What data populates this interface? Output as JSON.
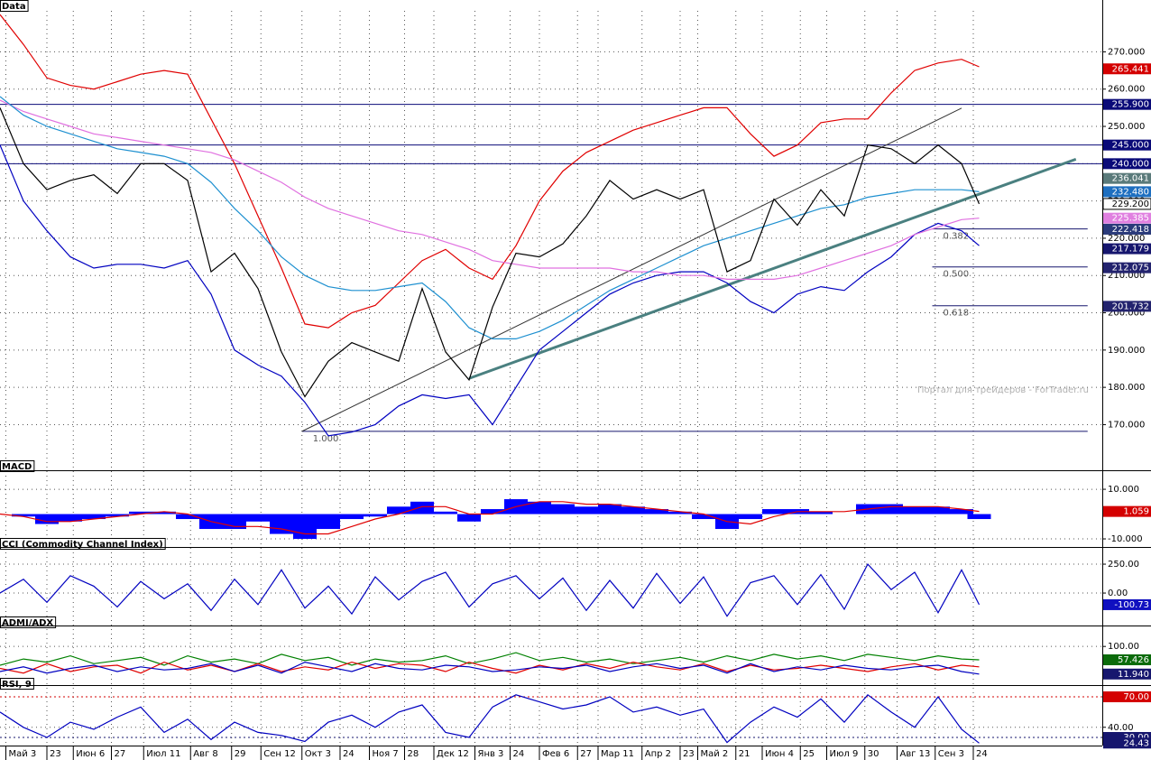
{
  "chart_data": [
    {
      "type": "line",
      "title": "Data",
      "watermark": "Портал для трейдеров - ForTrader.ru",
      "xlim": [
        0,
        376
      ],
      "ylim": [
        158,
        281
      ],
      "yticks": [
        {
          "value": 170,
          "label": "170.000"
        },
        {
          "value": 180,
          "label": "180.000"
        },
        {
          "value": 190,
          "label": "190.000"
        },
        {
          "value": 200,
          "label": "200.000"
        },
        {
          "value": 210,
          "label": "210.000"
        },
        {
          "value": 220,
          "label": "220.000"
        },
        {
          "value": 230,
          "label": "230.000"
        },
        {
          "value": 240,
          "label": "240.000"
        },
        {
          "value": 250,
          "label": "250.000"
        },
        {
          "value": 260,
          "label": "260.000"
        },
        {
          "value": 270,
          "label": "270.000"
        }
      ],
      "x": [
        0,
        8,
        16,
        24,
        32,
        40,
        48,
        56,
        64,
        72,
        80,
        88,
        96,
        104,
        112,
        120,
        128,
        136,
        144,
        152,
        160,
        168,
        176,
        184,
        192,
        200,
        208,
        216,
        224,
        232,
        240,
        248,
        256,
        264,
        272,
        280,
        288,
        296,
        304,
        312,
        320,
        328,
        334
      ],
      "series": [
        {
          "color": "#e00000",
          "values": [
            280,
            272,
            263,
            261,
            260,
            262,
            264,
            265,
            264,
            252,
            240,
            226,
            212,
            197,
            196,
            200,
            202,
            208,
            214,
            217,
            212,
            209,
            218,
            230,
            238,
            243,
            246,
            249,
            251,
            253,
            255,
            255,
            248,
            242,
            245,
            251,
            252,
            252,
            259,
            265,
            267,
            268,
            266
          ]
        },
        {
          "color": "#0000c0",
          "values": [
            245,
            230,
            222,
            215,
            212,
            213,
            213,
            212,
            214,
            205,
            190,
            186,
            183,
            176,
            167,
            168,
            170,
            175,
            178,
            177,
            178,
            170,
            180,
            190,
            195,
            200,
            205,
            208,
            210,
            211,
            211,
            208,
            203,
            200,
            205,
            207,
            206,
            211,
            215,
            221,
            224,
            222,
            218
          ]
        },
        {
          "color": "#e070e0",
          "values": [
            257,
            254,
            252,
            250,
            248,
            247,
            246,
            245,
            244,
            243,
            241,
            238,
            235,
            231,
            228,
            226,
            224,
            222,
            221,
            219,
            217,
            214,
            213,
            212,
            212,
            212,
            212,
            211,
            211,
            210,
            210,
            209,
            209,
            209,
            210,
            212,
            214,
            216,
            218,
            221,
            223,
            225,
            225.385
          ]
        },
        {
          "color": "#1e90d0",
          "values": [
            258,
            253,
            250,
            248,
            246,
            244,
            243,
            242,
            240,
            235,
            228,
            222,
            215,
            210,
            207,
            206,
            206,
            207,
            208,
            203,
            196,
            193,
            193,
            195,
            198,
            202,
            206,
            209,
            212,
            215,
            218,
            220,
            222,
            224,
            226,
            228,
            229,
            231,
            232,
            233,
            233,
            233,
            232.48
          ]
        },
        {
          "color": "#000000",
          "values": [
            255,
            240,
            233,
            235.5,
            237,
            232,
            240,
            240,
            235.5,
            211,
            216,
            206.5,
            189.5,
            177.5,
            187,
            192,
            189.5,
            187,
            206.5,
            189.5,
            182,
            201.5,
            216,
            215,
            218.5,
            226,
            235.5,
            230.5,
            233,
            230.5,
            233,
            211,
            214,
            230.5,
            223.5,
            233,
            226,
            245,
            244,
            240,
            245,
            240,
            229.2
          ]
        }
      ],
      "trendlines": [
        {
          "x": [
            103,
            328
          ],
          "y": [
            168.2,
            254.9
          ],
          "color": "#333333",
          "width": 1
        },
        {
          "x": [
            160,
            367
          ],
          "y": [
            182.4,
            241.2
          ],
          "color": "#4a8080",
          "width": 3
        }
      ],
      "fibonacci": {
        "x_end": 371,
        "levels": [
          {
            "label": "0.382",
            "value": 222.5,
            "x_start": 318
          },
          {
            "label": "0.500",
            "value": 212.3,
            "x_start": 318
          },
          {
            "label": "0.618",
            "value": 201.9,
            "x_start": 318
          },
          {
            "label": "1.000",
            "value": 168.2,
            "x_start": 103
          }
        ]
      },
      "markers": [
        {
          "value": 265.441,
          "color": "#d40000"
        },
        {
          "value": 255.9,
          "label": "255.900",
          "color": "#0a0a78",
          "line": true
        },
        {
          "value": 245,
          "label": "245.000",
          "color": "#0a0a78",
          "line": true
        },
        {
          "value": 240,
          "label": "240.000",
          "color": "#0a0a78",
          "line": true
        },
        {
          "value": 236.041,
          "color": "#5a7a7a"
        },
        {
          "value": 232.48,
          "label": "232.480",
          "color": "#1e6fc0"
        },
        {
          "value": 229.2,
          "label": "229.200",
          "color": "#ffffff",
          "text_color": "#000000"
        },
        {
          "value": 225.385,
          "color": "#e080e0"
        },
        {
          "value": 222.418,
          "color": "#2a3a7a"
        },
        {
          "value": 217.179,
          "color": "#16166e"
        },
        {
          "value": 212.075,
          "color": "#23236e"
        },
        {
          "value": 201.732,
          "color": "#23236e"
        }
      ]
    },
    {
      "type": "line",
      "title": "MACD",
      "xlim": [
        0,
        376
      ],
      "ylim": [
        -12.9,
        17.3
      ],
      "yticks": [
        {
          "value": 10,
          "label": "10.000"
        },
        {
          "value": -10,
          "label": "-10.000"
        }
      ],
      "x": [
        0,
        8,
        16,
        24,
        32,
        40,
        48,
        56,
        64,
        72,
        80,
        88,
        96,
        104,
        112,
        120,
        128,
        136,
        144,
        152,
        160,
        168,
        176,
        184,
        192,
        200,
        208,
        216,
        224,
        232,
        240,
        248,
        256,
        264,
        272,
        280,
        288,
        296,
        304,
        312,
        320,
        328,
        334
      ],
      "series": [
        {
          "type": "bar",
          "color": "#0000ff",
          "values": [
            0,
            -1,
            -4,
            -3,
            -2,
            -1,
            1,
            1,
            -2,
            -6,
            -6,
            -3,
            -8,
            -10,
            -6,
            -2,
            -1,
            3,
            5,
            1,
            -3,
            2,
            6,
            5,
            4,
            3,
            4,
            3,
            2,
            1,
            -2,
            -6,
            -2,
            2,
            2,
            1,
            0,
            4,
            4,
            3,
            3,
            2,
            -2
          ]
        },
        {
          "color": "#e00000",
          "values": [
            0,
            -1,
            -3,
            -3,
            -2,
            -1,
            0,
            1,
            0,
            -3,
            -5,
            -5,
            -6,
            -8,
            -8,
            -5,
            -2,
            0,
            3,
            3,
            0,
            0,
            3,
            5,
            5,
            4,
            4,
            3,
            2,
            1,
            0,
            -3,
            -4,
            -1,
            1,
            1,
            1,
            2,
            3,
            3,
            3,
            2,
            1.059
          ]
        }
      ],
      "markers": [
        {
          "value": 1.059,
          "color": "#d40000"
        }
      ]
    },
    {
      "type": "line",
      "title": "CCI (Commodity Channel Index)",
      "xlim": [
        0,
        376
      ],
      "ylim": [
        -273,
        383
      ],
      "yticks": [
        {
          "value": 250,
          "label": "250.00"
        },
        {
          "value": 0,
          "label": "0.00"
        }
      ],
      "x": [
        0,
        8,
        16,
        24,
        32,
        40,
        48,
        56,
        64,
        72,
        80,
        88,
        96,
        104,
        112,
        120,
        128,
        136,
        144,
        152,
        160,
        168,
        176,
        184,
        192,
        200,
        208,
        216,
        224,
        232,
        240,
        248,
        256,
        264,
        272,
        280,
        288,
        296,
        304,
        312,
        320,
        328,
        334
      ],
      "series": [
        {
          "color": "#0000c0",
          "values": [
            0,
            120,
            -80,
            150,
            60,
            -120,
            100,
            -50,
            80,
            -150,
            120,
            -100,
            200,
            -130,
            60,
            -180,
            140,
            -60,
            100,
            180,
            -120,
            80,
            150,
            -50,
            130,
            -150,
            110,
            -130,
            170,
            -90,
            140,
            -200,
            90,
            150,
            -100,
            160,
            -140,
            250,
            30,
            180,
            -170,
            200,
            -100.73
          ]
        }
      ],
      "markers": [
        {
          "value": -100.73,
          "color": "#1010c0"
        }
      ]
    },
    {
      "type": "line",
      "title": "ADMI/ADX",
      "xlim": [
        0,
        376
      ],
      "ylim": [
        -6,
        161
      ],
      "yticks": [
        {
          "value": 100,
          "label": "100.00"
        }
      ],
      "x": [
        0,
        8,
        16,
        24,
        32,
        40,
        48,
        56,
        64,
        72,
        80,
        88,
        96,
        104,
        112,
        120,
        128,
        136,
        144,
        152,
        160,
        168,
        176,
        184,
        192,
        200,
        208,
        216,
        224,
        232,
        240,
        248,
        256,
        264,
        272,
        280,
        288,
        296,
        304,
        312,
        320,
        328,
        334
      ],
      "series": [
        {
          "color": "#008000",
          "values": [
            40,
            60,
            50,
            70,
            45,
            55,
            65,
            40,
            70,
            50,
            60,
            45,
            75,
            55,
            65,
            40,
            60,
            50,
            55,
            70,
            45,
            60,
            80,
            55,
            65,
            50,
            60,
            45,
            55,
            65,
            50,
            70,
            55,
            75,
            60,
            70,
            55,
            75,
            65,
            55,
            70,
            60,
            57.426
          ]
        },
        {
          "color": "#e00000",
          "values": [
            30,
            15,
            45,
            20,
            35,
            40,
            15,
            50,
            25,
            40,
            20,
            45,
            20,
            35,
            25,
            50,
            30,
            45,
            40,
            20,
            50,
            30,
            15,
            40,
            25,
            45,
            30,
            50,
            35,
            25,
            45,
            20,
            40,
            25,
            30,
            40,
            30,
            20,
            35,
            45,
            25,
            40,
            35
          ]
        },
        {
          "color": "#0000c0",
          "values": [
            20,
            35,
            15,
            30,
            40,
            20,
            35,
            25,
            30,
            45,
            20,
            40,
            15,
            50,
            35,
            20,
            45,
            30,
            25,
            40,
            35,
            20,
            25,
            35,
            30,
            40,
            20,
            35,
            45,
            30,
            40,
            15,
            45,
            20,
            35,
            25,
            40,
            30,
            25,
            35,
            40,
            20,
            11.94
          ]
        }
      ],
      "markers": [
        {
          "value": 57.426,
          "color": "#0b6b0b"
        },
        {
          "value": 11.94,
          "label": "11.940",
          "color": "#16166e"
        }
      ]
    },
    {
      "type": "line",
      "title": "RSI, 9",
      "xlim": [
        0,
        376
      ],
      "ylim": [
        22,
        78
      ],
      "yticks": [
        {
          "value": 40,
          "label": "40.00"
        }
      ],
      "x": [
        0,
        8,
        16,
        24,
        32,
        40,
        48,
        56,
        64,
        72,
        80,
        88,
        96,
        104,
        112,
        120,
        128,
        136,
        144,
        152,
        160,
        168,
        176,
        184,
        192,
        200,
        208,
        216,
        224,
        232,
        240,
        248,
        256,
        264,
        272,
        280,
        288,
        296,
        304,
        312,
        320,
        328,
        334
      ],
      "series": [
        {
          "color": "#0000c0",
          "values": [
            55,
            40,
            30,
            45,
            38,
            50,
            60,
            35,
            48,
            28,
            45,
            35,
            32,
            26,
            45,
            52,
            40,
            55,
            62,
            35,
            30,
            60,
            72,
            65,
            58,
            62,
            70,
            55,
            60,
            52,
            58,
            25,
            45,
            60,
            50,
            68,
            45,
            72,
            55,
            40,
            70,
            38,
            24.43
          ]
        }
      ],
      "markers": [
        {
          "value": 70,
          "label": "70.00",
          "color": "#d40000",
          "line": true,
          "dash": true
        },
        {
          "value": 30,
          "label": "30.00",
          "color": "#16166e",
          "line": true,
          "dash": true
        },
        {
          "value": 24.43,
          "color": "#16166e"
        }
      ],
      "xticks": [
        {
          "value": 2,
          "label": "Май 3"
        },
        {
          "value": 16,
          "label": "23"
        },
        {
          "value": 25,
          "label": "Июн 6"
        },
        {
          "value": 38,
          "label": "27"
        },
        {
          "value": 49,
          "label": "Июл 11"
        },
        {
          "value": 65,
          "label": "Авг 8"
        },
        {
          "value": 79,
          "label": "29"
        },
        {
          "value": 89,
          "label": "Сен 12"
        },
        {
          "value": 103,
          "label": "Окт 3"
        },
        {
          "value": 116,
          "label": "24"
        },
        {
          "value": 126,
          "label": "Ноя 7"
        },
        {
          "value": 138,
          "label": "28"
        },
        {
          "value": 148,
          "label": "Дек 12"
        },
        {
          "value": 162,
          "label": "Янв 3"
        },
        {
          "value": 174,
          "label": "24"
        },
        {
          "value": 184,
          "label": "Фев 6"
        },
        {
          "value": 197,
          "label": "27"
        },
        {
          "value": 204,
          "label": "Мар 11"
        },
        {
          "value": 219,
          "label": "Апр 2"
        },
        {
          "value": 232,
          "label": "23"
        },
        {
          "value": 238,
          "label": "Май 2"
        },
        {
          "value": 251,
          "label": "21"
        },
        {
          "value": 260,
          "label": "Июн 4"
        },
        {
          "value": 273,
          "label": "25"
        },
        {
          "value": 282,
          "label": "Июл 9"
        },
        {
          "value": 295,
          "label": "30"
        },
        {
          "value": 306,
          "label": "Авг 13"
        },
        {
          "value": 319,
          "label": "Сен 3"
        },
        {
          "value": 332,
          "label": "24"
        }
      ]
    }
  ]
}
